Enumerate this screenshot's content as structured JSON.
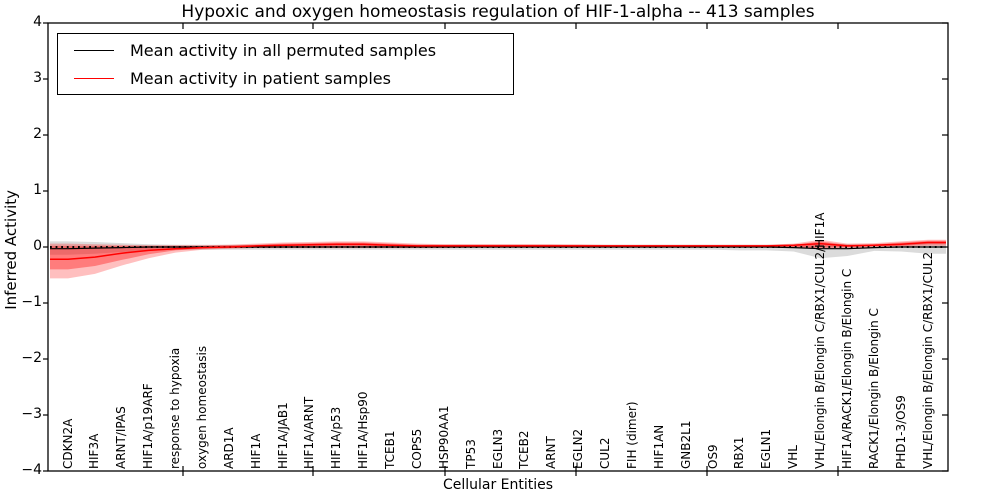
{
  "title": "Hypoxic and oxygen homeostasis regulation of HIF-1-alpha -- 413 samples",
  "axes": {
    "xlabel": "Cellular Entities",
    "ylabel": "Inferred Activity",
    "yticks": [
      4,
      3,
      2,
      1,
      0,
      -1,
      -2,
      -3,
      -4
    ]
  },
  "legend": {
    "entries": [
      {
        "label": "Mean activity in all permuted samples",
        "color": "#000000"
      },
      {
        "label": "Mean activity in patient samples",
        "color": "#ff0000"
      }
    ]
  },
  "chart_data": {
    "type": "line",
    "title": "Hypoxic and oxygen homeostasis regulation of HIF-1-alpha -- 413 samples",
    "xlabel": "Cellular Entities",
    "ylabel": "Inferred Activity",
    "ylim": [
      -4,
      4
    ],
    "grid": false,
    "legend_position": "upper left",
    "categories": [
      "CDKN2A",
      "HIF3A",
      "ARNT/IPAS",
      "HIF1A/p19ARF",
      "response to hypoxia",
      "oxygen homeostasis",
      "ARD1A",
      "HIF1A",
      "HIF1A/JAB1",
      "HIF1A/ARNT",
      "HIF1A/p53",
      "HIF1A/Hsp90",
      "TCEB1",
      "COPS5",
      "HSP90AA1",
      "TP53",
      "EGLN3",
      "TCEB2",
      "ARNT",
      "EGLN2",
      "CUL2",
      "FIH (dimer)",
      "HIF1AN",
      "GNB2L1",
      "OS9",
      "RBX1",
      "EGLN1",
      "VHL",
      "VHL/Elongin B/Elongin C/RBX1/CUL2/HIF1A",
      "HIF1A/RACK1/Elongin B/Elongin C",
      "RACK1/Elongin B/Elongin C",
      "PHD1-3/OS9",
      "VHL/Elongin B/Elongin C/RBX1/CUL2"
    ],
    "series": [
      {
        "name": "Mean activity in all permuted samples",
        "color": "#000000",
        "values": [
          -0.03,
          -0.02,
          -0.01,
          0,
          0,
          0,
          0,
          0,
          0,
          0,
          0,
          0,
          0,
          0,
          0,
          0,
          0,
          0,
          0,
          0,
          0,
          0,
          0,
          0,
          0,
          0,
          0,
          -0.01,
          -0.03,
          -0.03,
          -0.01,
          0,
          0
        ]
      },
      {
        "name": "Mean activity in patient samples",
        "color": "#ff0000",
        "values": [
          -0.22,
          -0.18,
          -0.11,
          -0.06,
          -0.03,
          -0.01,
          0,
          0.02,
          0.03,
          0.04,
          0.05,
          0.05,
          0.03,
          0.02,
          0.02,
          0.02,
          0.02,
          0.02,
          0.02,
          0.02,
          0.02,
          0.02,
          0.02,
          0.02,
          0.02,
          0.02,
          0.02,
          0.03,
          0.06,
          0.02,
          0.03,
          0.05,
          0.08
        ]
      }
    ],
    "bands": [
      {
        "name": "permuted-range",
        "color": "rgba(125,125,125,0.28)",
        "upper": [
          0.1,
          0.09,
          0.07,
          0.05,
          0.04,
          0.04,
          0.04,
          0.04,
          0.04,
          0.04,
          0.04,
          0.04,
          0.04,
          0.04,
          0.04,
          0.04,
          0.04,
          0.04,
          0.04,
          0.04,
          0.04,
          0.04,
          0.04,
          0.04,
          0.04,
          0.04,
          0.04,
          0.05,
          0.06,
          0.05,
          0.04,
          0.05,
          0.07
        ],
        "lower": [
          -0.14,
          -0.12,
          -0.09,
          -0.07,
          -0.05,
          -0.05,
          -0.05,
          -0.05,
          -0.05,
          -0.05,
          -0.05,
          -0.05,
          -0.05,
          -0.05,
          -0.05,
          -0.05,
          -0.05,
          -0.05,
          -0.05,
          -0.05,
          -0.05,
          -0.05,
          -0.05,
          -0.05,
          -0.05,
          -0.06,
          -0.06,
          -0.08,
          -0.2,
          -0.16,
          -0.07,
          -0.08,
          -0.12
        ]
      },
      {
        "name": "patient-range-outer",
        "color": "rgba(255,0,0,0.25)",
        "upper": [
          0.06,
          0.05,
          0.04,
          0.03,
          0.03,
          0.03,
          0.04,
          0.06,
          0.08,
          0.09,
          0.1,
          0.1,
          0.08,
          0.06,
          0.05,
          0.05,
          0.05,
          0.05,
          0.05,
          0.05,
          0.04,
          0.04,
          0.04,
          0.04,
          0.04,
          0.04,
          0.04,
          0.06,
          0.13,
          0.06,
          0.07,
          0.1,
          0.13
        ],
        "lower": [
          -0.56,
          -0.48,
          -0.33,
          -0.2,
          -0.1,
          -0.05,
          -0.03,
          -0.02,
          -0.02,
          -0.02,
          -0.02,
          -0.02,
          -0.02,
          -0.02,
          -0.02,
          -0.01,
          -0.01,
          -0.01,
          -0.01,
          -0.01,
          -0.01,
          -0.01,
          -0.01,
          -0.01,
          -0.01,
          -0.01,
          -0.01,
          -0.01,
          -0.04,
          -0.02,
          -0.01,
          0,
          0.02
        ]
      },
      {
        "name": "patient-range-inner",
        "color": "rgba(255,0,0,0.35)",
        "upper": [
          0.02,
          0.02,
          0.02,
          0.02,
          0.02,
          0.02,
          0.03,
          0.04,
          0.06,
          0.07,
          0.08,
          0.08,
          0.06,
          0.04,
          0.04,
          0.04,
          0.04,
          0.04,
          0.04,
          0.03,
          0.03,
          0.03,
          0.03,
          0.03,
          0.03,
          0.03,
          0.03,
          0.04,
          0.1,
          0.04,
          0.05,
          0.08,
          0.11
        ],
        "lower": [
          -0.4,
          -0.34,
          -0.23,
          -0.13,
          -0.06,
          -0.03,
          -0.02,
          -0.01,
          -0.01,
          -0.01,
          -0.01,
          -0.01,
          -0.01,
          -0.01,
          -0.01,
          0,
          0,
          0,
          0,
          0,
          0,
          0,
          0,
          0,
          0,
          0,
          0,
          0,
          -0.01,
          0,
          0.01,
          0.02,
          0.05
        ]
      }
    ],
    "zero_reference_line": 0
  }
}
